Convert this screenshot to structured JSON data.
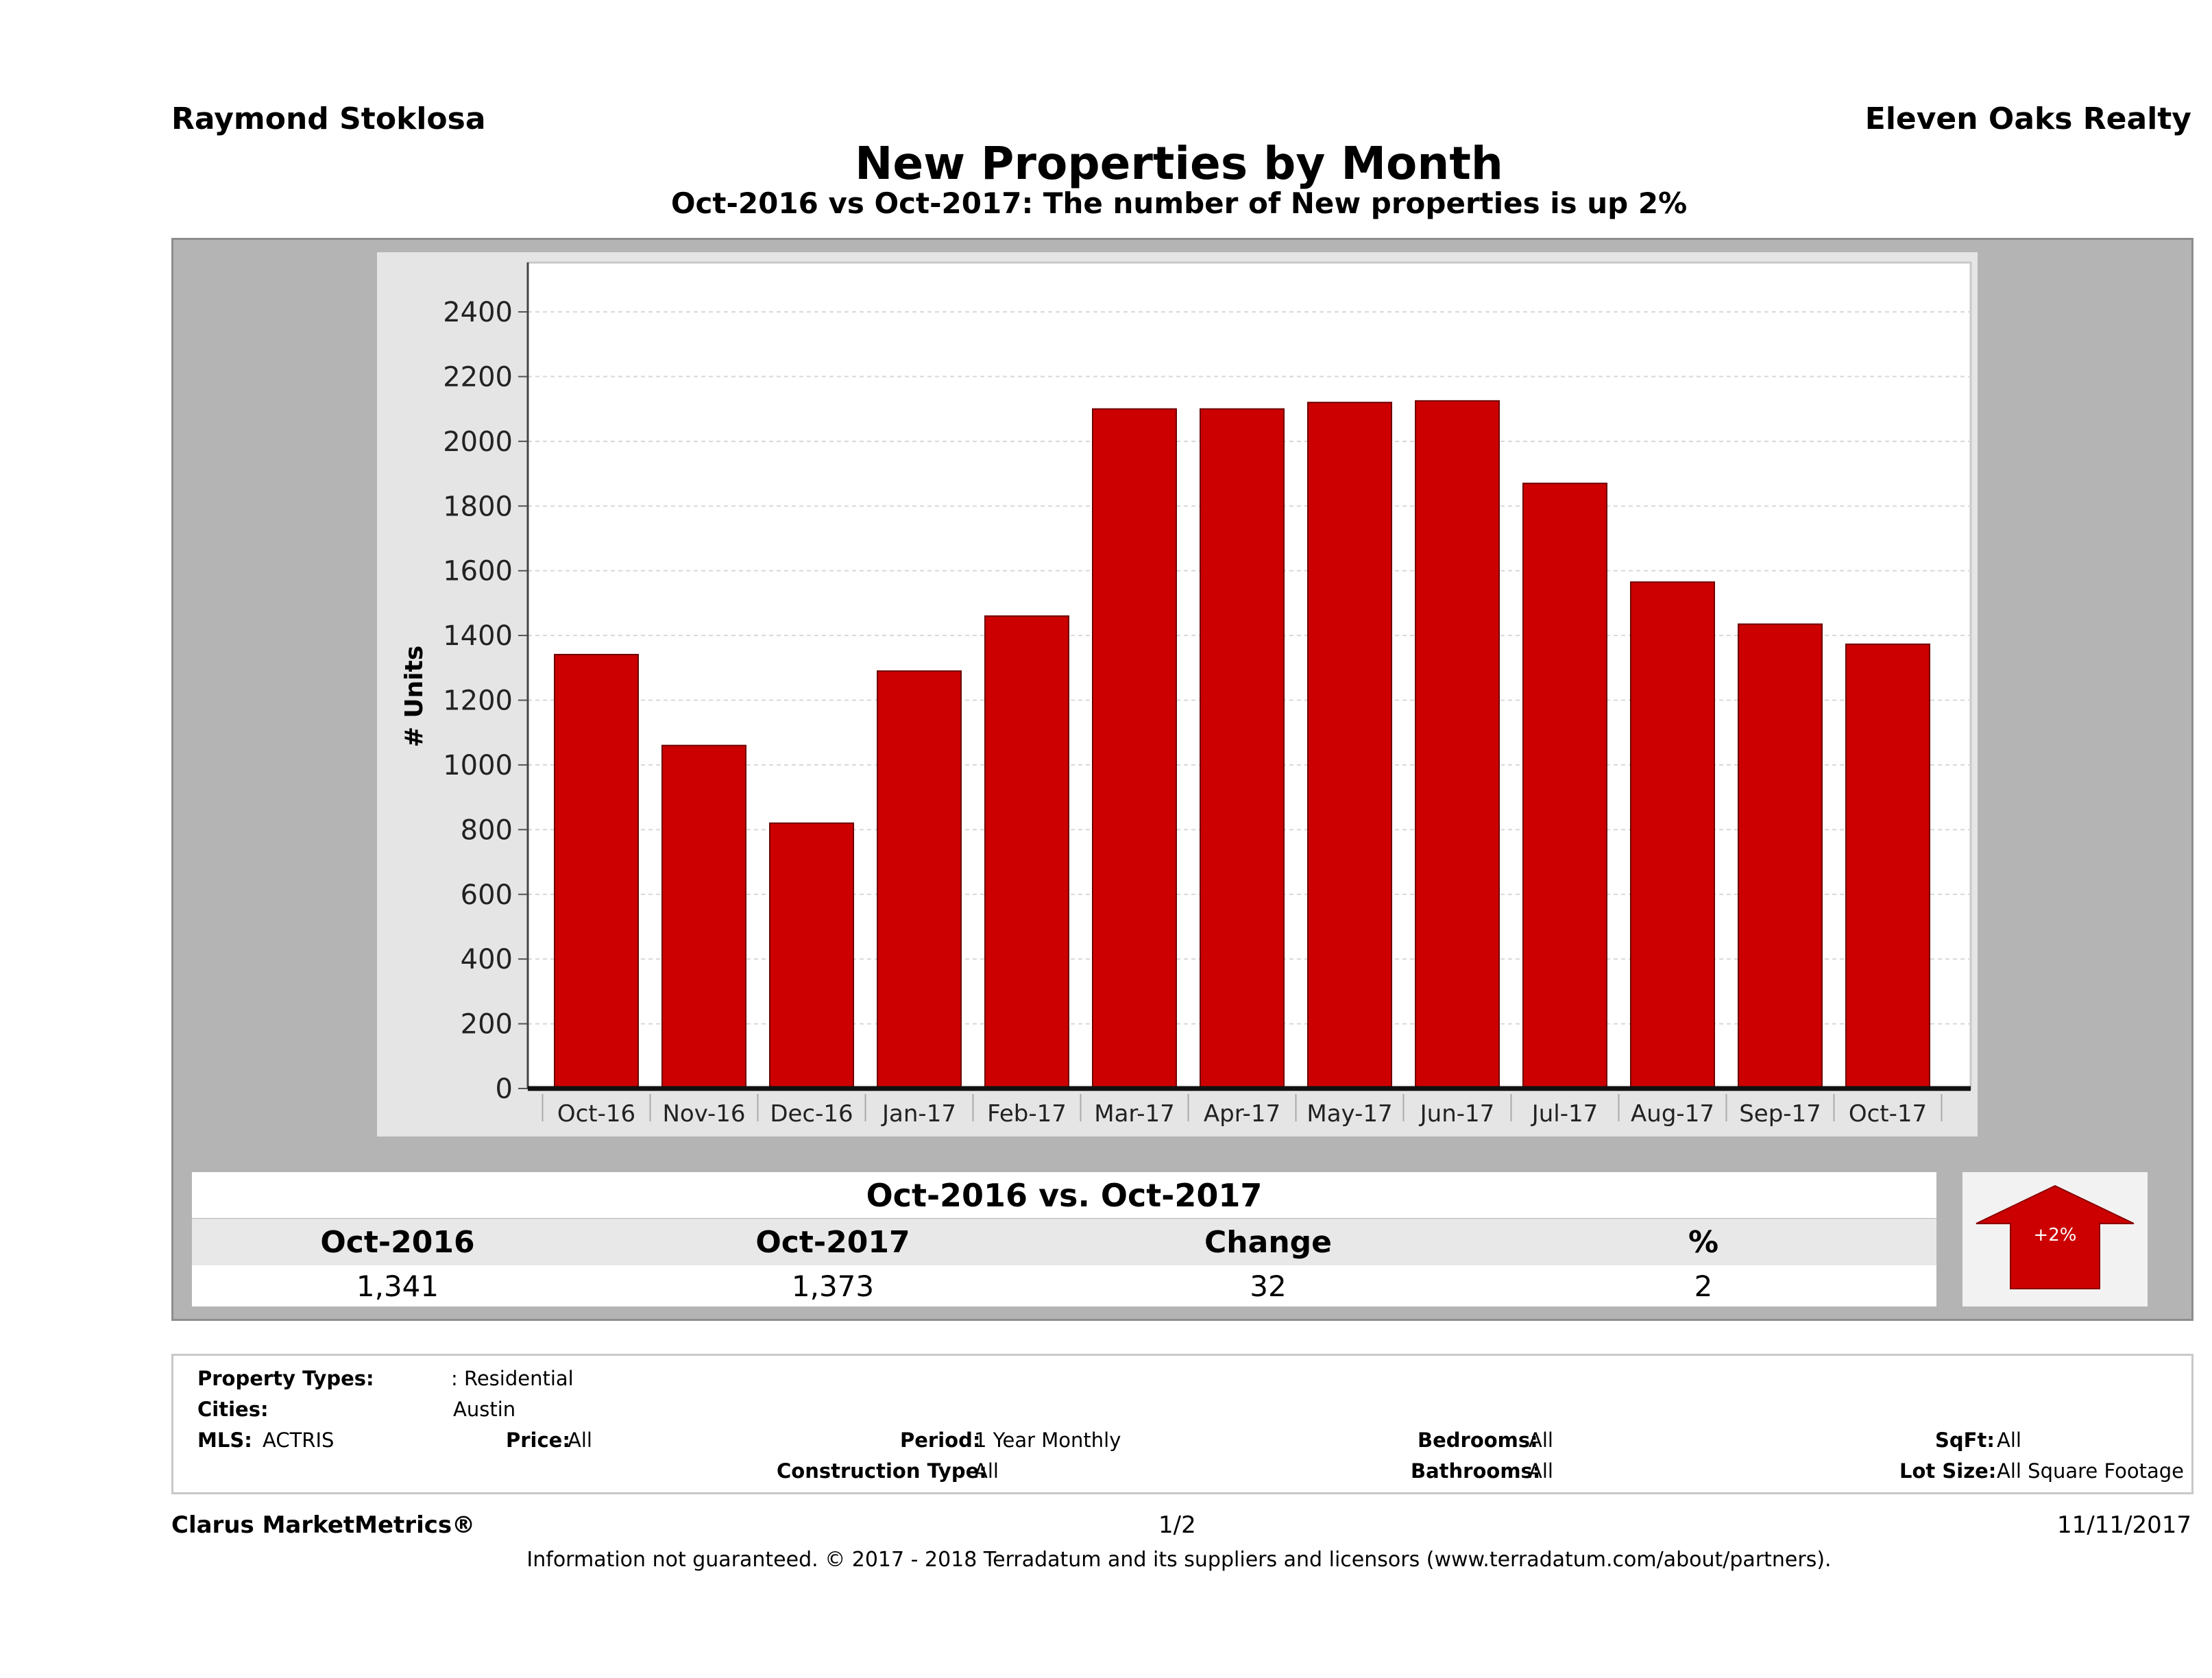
{
  "header": {
    "agent": "Raymond Stoklosa",
    "brokerage": "Eleven Oaks Realty",
    "title": "New Properties by Month",
    "subtitle": "Oct-2016 vs Oct-2017: The number of New  properties is up 2%"
  },
  "chart_data": {
    "type": "bar",
    "categories": [
      "Oct-16",
      "Nov-16",
      "Dec-16",
      "Jan-17",
      "Feb-17",
      "Mar-17",
      "Apr-17",
      "May-17",
      "Jun-17",
      "Jul-17",
      "Aug-17",
      "Sep-17",
      "Oct-17"
    ],
    "values": [
      1341,
      1060,
      820,
      1290,
      1460,
      2100,
      2100,
      2120,
      2125,
      1870,
      1565,
      1435,
      1373
    ],
    "ylabel": "# Units",
    "xlabel": "",
    "ylim": [
      0,
      2400
    ],
    "yticks": [
      0,
      200,
      400,
      600,
      800,
      1000,
      1200,
      1400,
      1600,
      1800,
      2000,
      2200,
      2400
    ],
    "grid": true,
    "bar_color": "#cc0000"
  },
  "summary": {
    "title": "Oct-2016 vs. Oct-2017",
    "headers": [
      "Oct-2016",
      "Oct-2017",
      "Change",
      "%"
    ],
    "values": [
      "1,341",
      "1,373",
      "32",
      "2"
    ],
    "arrow_label": "+2%",
    "arrow_color": "#cc0000"
  },
  "criteria": {
    "property_types_label": "Property Types:",
    "property_types_value": ": Residential",
    "cities_label": "Cities:",
    "cities_value": "Austin",
    "mls_label": "MLS:",
    "mls_value": "ACTRIS",
    "price_label": "Price:",
    "price_value": "All",
    "period_label": "Period:",
    "period_value": "1 Year Monthly",
    "construction_label": "Construction Type:",
    "construction_value": "All",
    "bedrooms_label": "Bedrooms:",
    "bedrooms_value": "All",
    "bathrooms_label": "Bathrooms:",
    "bathrooms_value": "All",
    "sqft_label": "SqFt:",
    "sqft_value": "All",
    "lotsize_label": "Lot Size:",
    "lotsize_value": "All Square Footage"
  },
  "footer": {
    "brand": "Clarus MarketMetrics®",
    "page": "1/2",
    "date": "11/11/2017",
    "disclaimer": "Information not guaranteed. © 2017 - 2018 Terradatum and its suppliers and licensors (www.terradatum.com/about/partners)."
  }
}
